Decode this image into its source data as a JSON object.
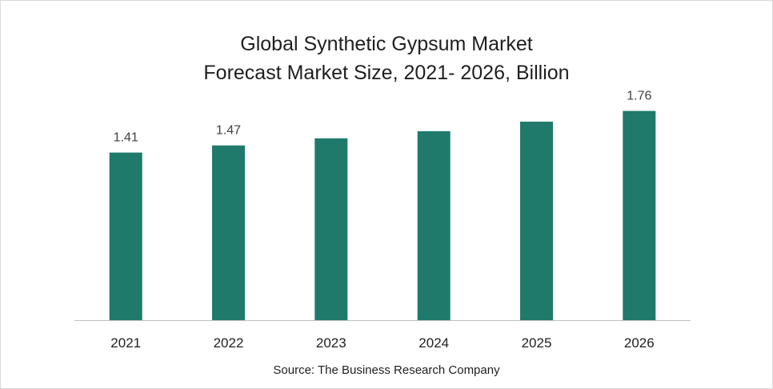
{
  "chart_data": {
    "type": "bar",
    "title": "Global Synthetic Gypsum Market",
    "subtitle": "Forecast Market Size, 2021- 2026, Billion",
    "categories": [
      "2021",
      "2022",
      "2023",
      "2024",
      "2025",
      "2026"
    ],
    "values": [
      1.41,
      1.47,
      1.53,
      1.59,
      1.67,
      1.76
    ],
    "data_labels": [
      "1.41",
      "1.47",
      "",
      "",
      "",
      "1.76"
    ],
    "xlabel": "",
    "ylabel": "",
    "ylim": [
      0,
      2.0
    ],
    "grid": false,
    "legend": "none",
    "bar_color": "#1f7a6b"
  },
  "source": "Source: The Business Research Company"
}
